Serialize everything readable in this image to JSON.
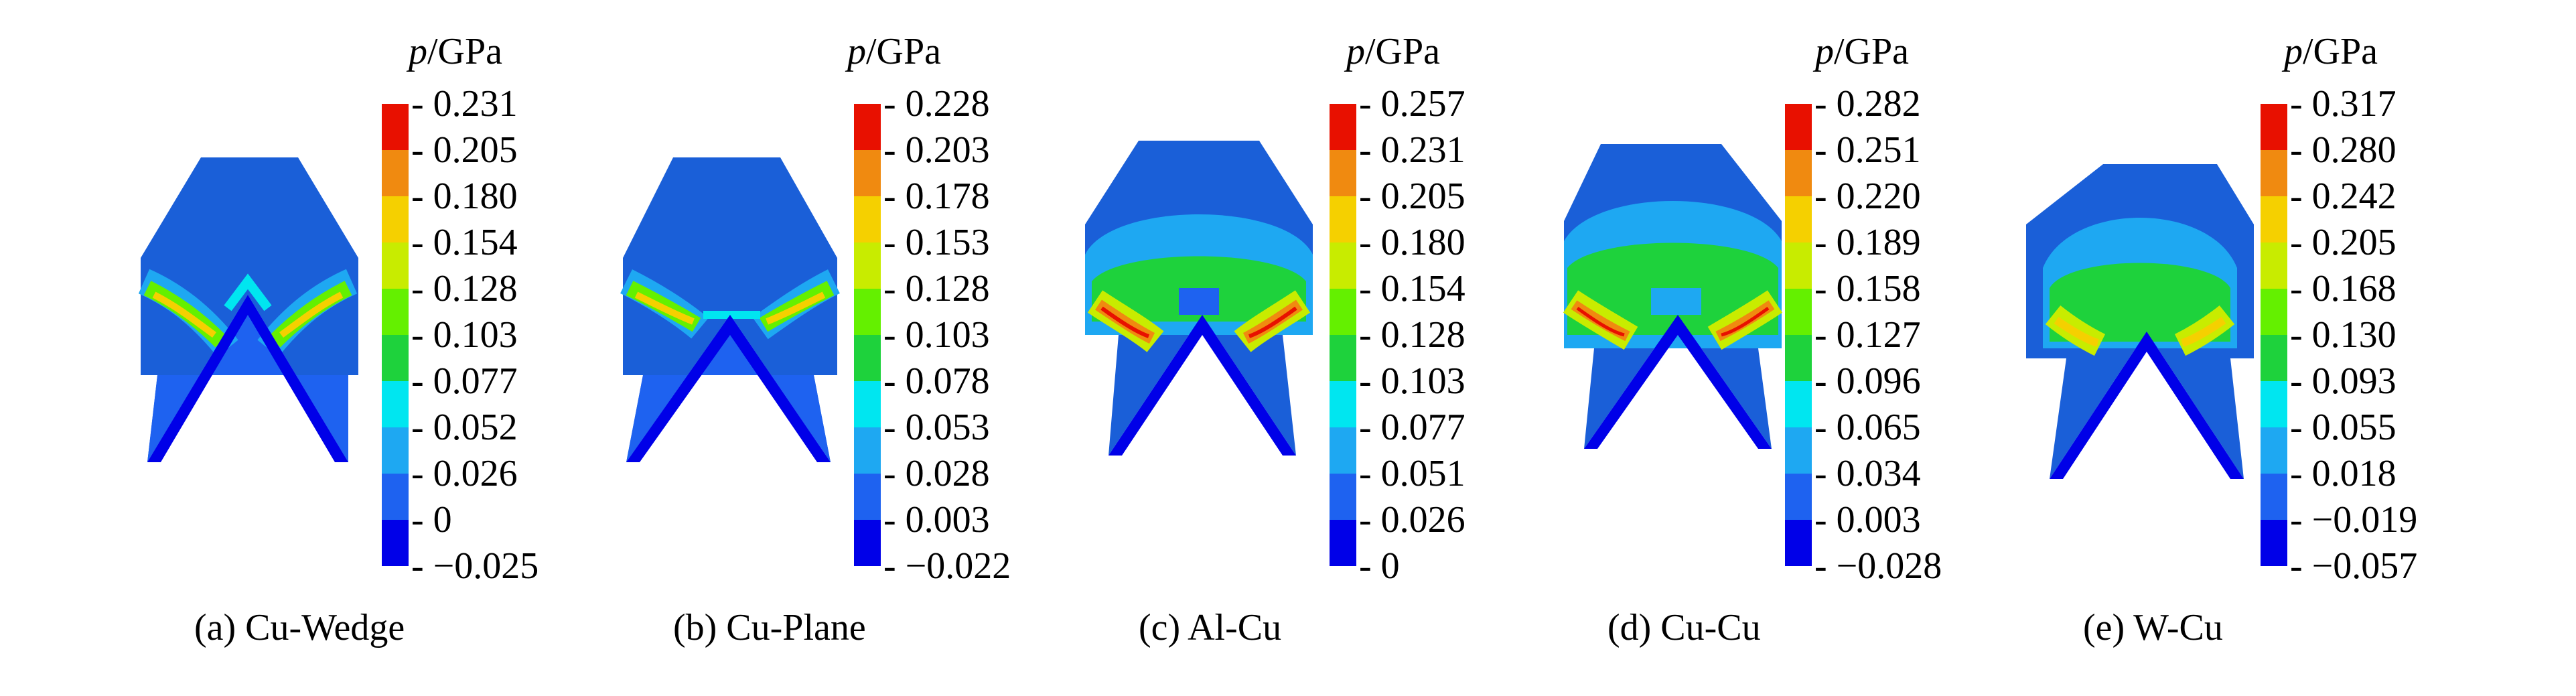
{
  "colorbar_colors": [
    "#0000e8",
    "#1e62f0",
    "#1ea8f2",
    "#00e6f0",
    "#1ed23c",
    "#64f000",
    "#c8ec00",
    "#f5d000",
    "#f08a10",
    "#e81000"
  ],
  "panels": [
    {
      "unit_symbol": "p",
      "unit_text": "/GPa",
      "ticks": [
        "0.231",
        "0.205",
        "0.180",
        "0.154",
        "0.128",
        "0.103",
        "0.077",
        "0.052",
        "0.026",
        "0",
        "−0.025"
      ],
      "caption": "(a) Cu-Wedge"
    },
    {
      "unit_symbol": "p",
      "unit_text": "/GPa",
      "ticks": [
        "0.228",
        "0.203",
        "0.178",
        "0.153",
        "0.128",
        "0.103",
        "0.078",
        "0.053",
        "0.028",
        "0.003",
        "−0.022"
      ],
      "caption": "(b) Cu-Plane"
    },
    {
      "unit_symbol": "p",
      "unit_text": "/GPa",
      "ticks": [
        "0.257",
        "0.231",
        "0.205",
        "0.180",
        "0.154",
        "0.128",
        "0.103",
        "0.077",
        "0.051",
        "0.026",
        "0"
      ],
      "caption": "(c) Al-Cu"
    },
    {
      "unit_symbol": "p",
      "unit_text": "/GPa",
      "ticks": [
        "0.282",
        "0.251",
        "0.220",
        "0.189",
        "0.158",
        "0.127",
        "0.096",
        "0.065",
        "0.034",
        "0.003",
        "−0.028"
      ],
      "caption": "(d) Cu-Cu"
    },
    {
      "unit_symbol": "p",
      "unit_text": "/GPa",
      "ticks": [
        "0.317",
        "0.280",
        "0.242",
        "0.205",
        "0.168",
        "0.130",
        "0.093",
        "0.055",
        "0.018",
        "−0.019",
        "−0.057"
      ],
      "caption": "(e) W-Cu"
    }
  ]
}
